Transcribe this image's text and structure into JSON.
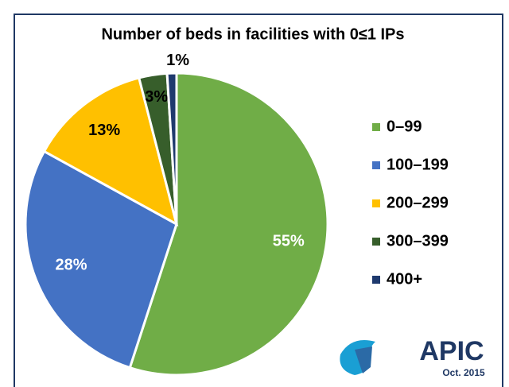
{
  "chart_data": {
    "type": "pie",
    "title": "Number of beds in facilities with 0≤1 IPs",
    "categories": [
      "0–99",
      "100–199",
      "200–299",
      "300–399",
      "400+"
    ],
    "values": [
      55,
      28,
      13,
      3,
      1
    ],
    "value_labels": [
      "55%",
      "28%",
      "13%",
      "3%",
      "1%"
    ],
    "colors": [
      "#70ad47",
      "#4472c4",
      "#ffc000",
      "#375e2b",
      "#1f3a6e"
    ],
    "legend": "right"
  },
  "logo": {
    "name": "APIC",
    "date": "Oct. 2015"
  }
}
